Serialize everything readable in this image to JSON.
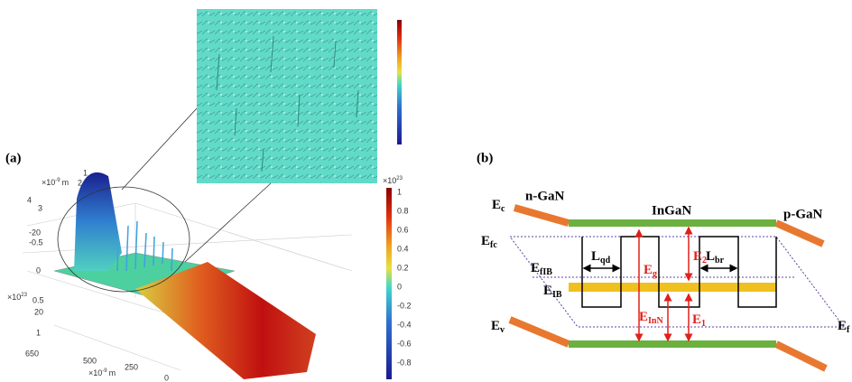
{
  "panel_a": {
    "label": "(a)",
    "colorbar": {
      "base": "×10",
      "exponent": "23",
      "ticks": [
        "1",
        "0.8",
        "0.6",
        "0.4",
        "0.2",
        "0",
        "-0.2",
        "-0.4",
        "-0.6",
        "-0.8"
      ]
    },
    "axis_labels": [
      {
        "base": "×10",
        "exponent": "-9",
        "unit": "m"
      },
      {
        "text": "2"
      },
      {
        "text": "1"
      },
      {
        "text": "4"
      },
      {
        "text": "3"
      },
      {
        "text": "-20"
      },
      {
        "text": "-0.5"
      },
      {
        "text": "0"
      },
      {
        "base": "×10",
        "exponent": "23"
      },
      {
        "text": "0.5"
      },
      {
        "text": "20"
      },
      {
        "text": "1"
      },
      {
        "text": "650"
      },
      {
        "text": "500"
      },
      {
        "base": "×10",
        "exponent": "-9",
        "unit": "m"
      },
      {
        "text": "250"
      },
      {
        "text": "0"
      }
    ]
  },
  "panel_b": {
    "label": "(b)",
    "regions": {
      "left": "n-GaN",
      "middle": "InGaN",
      "right": "p-GaN"
    },
    "levels": {
      "ec": {
        "main": "E",
        "sub": "c"
      },
      "efc": {
        "main": "E",
        "sub": "fc"
      },
      "efib": {
        "main": "E",
        "sub": "fIB"
      },
      "eib": {
        "main": "E",
        "sub": "IB"
      },
      "ev": {
        "main": "E",
        "sub": "v"
      },
      "efv": {
        "main": "E",
        "sub": "f"
      }
    },
    "lengths": {
      "lqd": {
        "main": "L",
        "sub": "qd"
      },
      "lbr": {
        "main": "L",
        "sub": "br"
      }
    },
    "energies": {
      "eg": {
        "main": "E",
        "sub": "g"
      },
      "e2": {
        "main": "E",
        "sub": "2"
      },
      "einn": {
        "main": "E",
        "sub": "InN"
      },
      "e1": {
        "main": "E",
        "sub": "1"
      }
    }
  }
}
